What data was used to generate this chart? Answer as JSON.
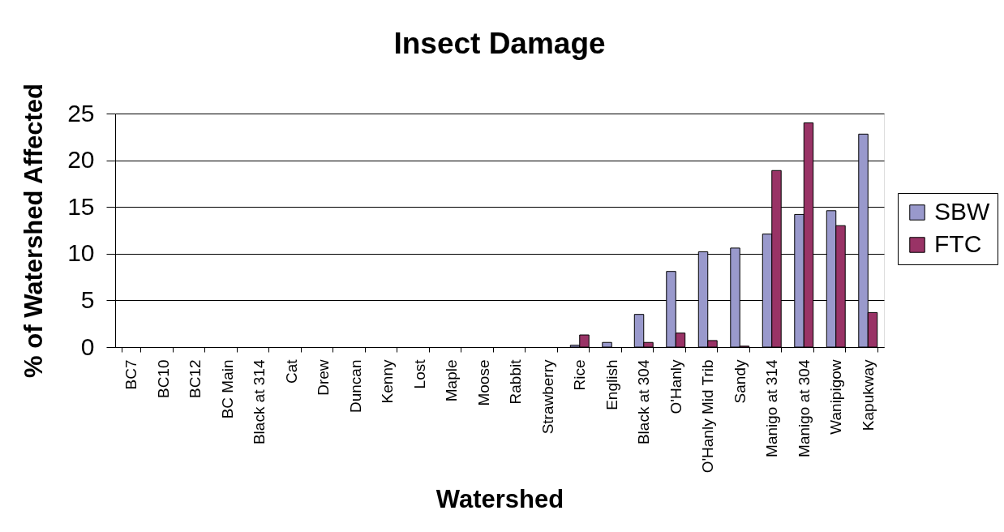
{
  "chart_data": {
    "type": "bar",
    "title": "Insect Damage",
    "xlabel": "Watershed",
    "ylabel": "% of Watershed Affected",
    "categories": [
      "BC7",
      "BC10",
      "BC12",
      "BC Main",
      "Black at 314",
      "Cat",
      "Drew",
      "Duncan",
      "Kenny",
      "Lost",
      "Maple",
      "Moose",
      "Rabbit",
      "Strawberry",
      "Rice",
      "English",
      "Black at 304",
      "O'Hanly",
      "O'Hanly Mid Trib",
      "Sandy",
      "Manigo at 314",
      "Manigo at 304",
      "Wanipigow",
      "Kapukway"
    ],
    "series": [
      {
        "name": "SBW",
        "color": "#9999cc",
        "values": [
          null,
          null,
          null,
          null,
          null,
          null,
          null,
          null,
          null,
          null,
          null,
          null,
          null,
          null,
          0.2,
          0.5,
          3.5,
          8.1,
          10.2,
          10.6,
          12.1,
          14.2,
          14.6,
          22.8
        ]
      },
      {
        "name": "FTC",
        "color": "#993366",
        "values": [
          null,
          null,
          null,
          null,
          null,
          null,
          null,
          null,
          null,
          null,
          null,
          null,
          null,
          null,
          1.3,
          null,
          0.5,
          1.5,
          0.7,
          0.1,
          18.9,
          24.0,
          13.0,
          3.7
        ]
      }
    ],
    "ylim": [
      0,
      25
    ],
    "yticks": [
      0,
      5,
      10,
      15,
      20,
      25
    ],
    "grid": "y",
    "legend": "right"
  }
}
